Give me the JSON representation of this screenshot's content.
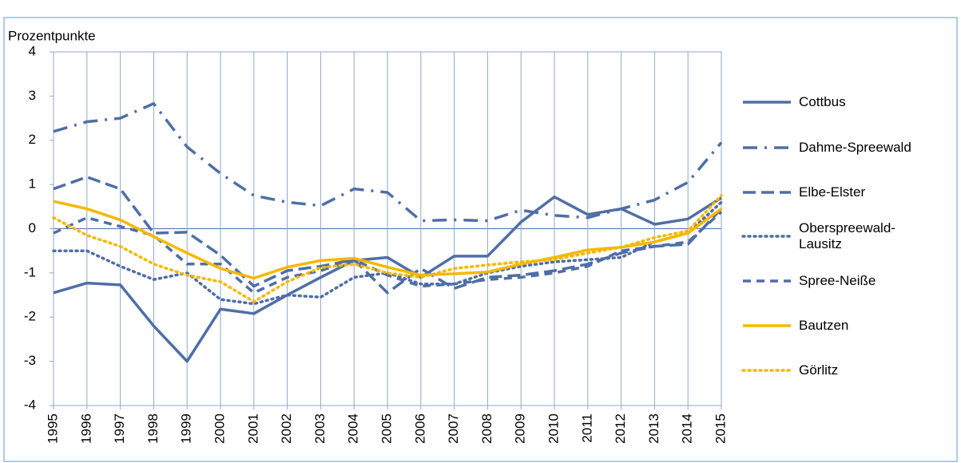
{
  "chart_data": {
    "type": "line",
    "y_label": "Prozentpunkte",
    "categories": [
      "1995",
      "1996",
      "1997",
      "1998",
      "1999",
      "2000",
      "2001",
      "2002",
      "2003",
      "2004",
      "2005",
      "2006",
      "2007",
      "2008",
      "2009",
      "2010",
      "2011",
      "2012",
      "2013",
      "2014",
      "2015"
    ],
    "series": [
      {
        "name": "Cottbus",
        "color": "#4f6ea6",
        "dash": "none",
        "values": [
          -1.45,
          -1.23,
          -1.27,
          -2.2,
          -3.0,
          -1.82,
          -1.92,
          -1.5,
          -1.1,
          -0.72,
          -0.65,
          -1.1,
          -0.62,
          -0.62,
          0.15,
          0.72,
          0.32,
          0.45,
          0.1,
          0.22,
          0.7
        ]
      },
      {
        "name": "Dahme-Spreewald",
        "color": "#4f6ea6",
        "dash": "18 9 3 9",
        "values": [
          2.2,
          2.42,
          2.5,
          2.83,
          1.85,
          1.25,
          0.75,
          0.6,
          0.52,
          0.9,
          0.82,
          0.18,
          0.2,
          0.18,
          0.42,
          0.3,
          0.25,
          0.45,
          0.65,
          1.05,
          1.95
        ]
      },
      {
        "name": "Elbe-Elster",
        "color": "#4f6ea6",
        "dash": "16 7",
        "values": [
          0.9,
          1.17,
          0.9,
          -0.1,
          -0.08,
          -0.6,
          -1.3,
          -0.95,
          -0.85,
          -0.7,
          -1.45,
          -0.9,
          -1.35,
          -1.1,
          -1.05,
          -0.95,
          -0.8,
          -0.55,
          -0.4,
          -0.35,
          0.45
        ]
      },
      {
        "name": "Oberspreewald-\nLausitz",
        "color": "#4f6ea6",
        "dash": "2 5",
        "values": [
          -0.5,
          -0.5,
          -0.85,
          -1.15,
          -1.0,
          -1.6,
          -1.7,
          -1.5,
          -1.55,
          -1.1,
          -1.0,
          -1.25,
          -1.25,
          -1.0,
          -0.85,
          -0.75,
          -0.7,
          -0.65,
          -0.3,
          -0.1,
          0.6
        ]
      },
      {
        "name": "Spree-Neiße",
        "color": "#4f6ea6",
        "dash": "10 7",
        "values": [
          -0.1,
          0.25,
          0.05,
          -0.15,
          -0.8,
          -0.8,
          -1.45,
          -1.1,
          -0.95,
          -0.7,
          -1.05,
          -1.3,
          -1.25,
          -1.15,
          -1.1,
          -1.0,
          -0.85,
          -0.5,
          -0.4,
          -0.3,
          0.38
        ]
      },
      {
        "name": "Bautzen",
        "color": "#f5b800",
        "dash": "none",
        "values": [
          0.62,
          0.45,
          0.2,
          -0.18,
          -0.55,
          -0.9,
          -1.12,
          -0.87,
          -0.72,
          -0.67,
          -0.87,
          -1.05,
          -1.02,
          -0.98,
          -0.8,
          -0.65,
          -0.48,
          -0.42,
          -0.3,
          -0.1,
          0.45
        ]
      },
      {
        "name": "Görlitz",
        "color": "#f5b800",
        "dash": "2 5",
        "values": [
          0.25,
          -0.15,
          -0.4,
          -0.8,
          -1.05,
          -1.2,
          -1.65,
          -1.2,
          -0.88,
          -0.8,
          -1.0,
          -1.1,
          -0.9,
          -0.82,
          -0.75,
          -0.7,
          -0.55,
          -0.42,
          -0.2,
          -0.05,
          0.75
        ]
      }
    ],
    "ylim": [
      -4,
      4
    ],
    "yticks": [
      -4,
      -3,
      -2,
      -1,
      0,
      1,
      2,
      3,
      4
    ],
    "grid": false,
    "legend": "right"
  }
}
